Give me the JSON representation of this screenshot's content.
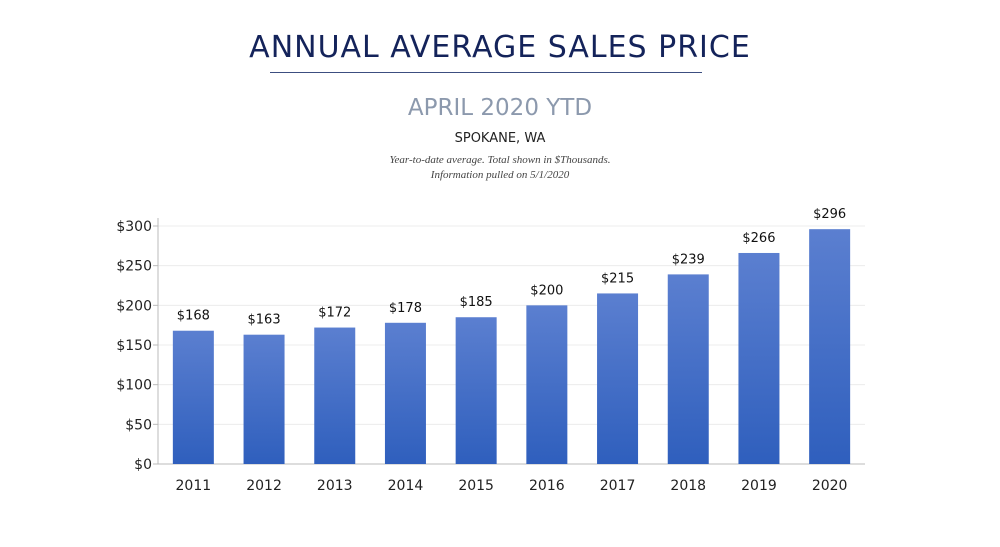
{
  "header": {
    "title": "ANNUAL AVERAGE SALES PRICE",
    "subtitle": "APRIL 2020 YTD",
    "location": "SPOKANE, WA",
    "note_line1": "Year-to-date average.  Total shown in $Thousands.",
    "note_line2": "Information pulled on 5/1/2020"
  },
  "chart_data": {
    "type": "bar",
    "categories": [
      "2011",
      "2012",
      "2013",
      "2014",
      "2015",
      "2016",
      "2017",
      "2018",
      "2019",
      "2020"
    ],
    "values": [
      168,
      163,
      172,
      178,
      185,
      200,
      215,
      239,
      266,
      296
    ],
    "data_labels": [
      "$168",
      "$163",
      "$172",
      "$178",
      "$185",
      "$200",
      "$215",
      "$239",
      "$266",
      "$296"
    ],
    "yticks": [
      0,
      50,
      100,
      150,
      200,
      250,
      300
    ],
    "ytick_labels": [
      "$0",
      "$50",
      "$100",
      "$150",
      "$200",
      "$250",
      "$300"
    ],
    "ylim": [
      0,
      300
    ],
    "grid": true,
    "bar_color_top": "#5b7fd0",
    "bar_color_bottom": "#2f5fbd",
    "xlabel": "",
    "ylabel": ""
  }
}
